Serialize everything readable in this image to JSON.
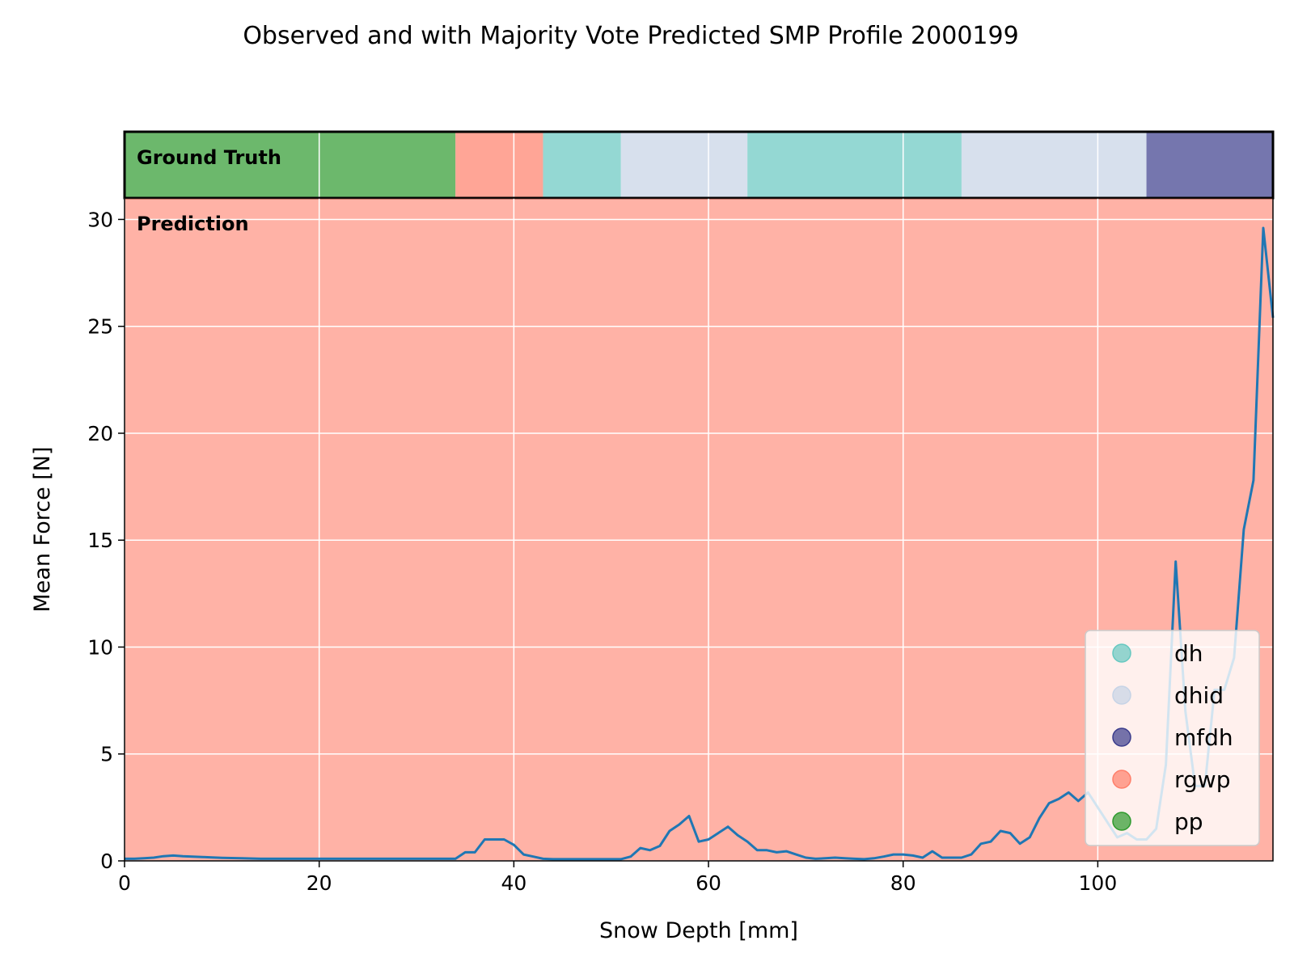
{
  "chart_data": {
    "type": "line",
    "title": "Observed and with Majority Vote Predicted SMP Profile 2000199",
    "xlabel": "Snow Depth [mm]",
    "ylabel": "Mean Force [N]",
    "xlim": [
      0,
      118
    ],
    "ylim": [
      0,
      31
    ],
    "x_ticks": [
      "0",
      "20",
      "40",
      "60",
      "80",
      "100"
    ],
    "y_ticks": [
      "0",
      "5",
      "10",
      "15",
      "20",
      "25",
      "30"
    ],
    "grid": true,
    "band_labels": {
      "ground_truth": "Ground Truth",
      "prediction": "Prediction"
    },
    "ground_truth_segments": [
      {
        "label": "pp",
        "start": 0,
        "end": 34
      },
      {
        "label": "rgwp",
        "start": 34,
        "end": 43
      },
      {
        "label": "dh",
        "start": 43,
        "end": 51
      },
      {
        "label": "dhid",
        "start": 51,
        "end": 64
      },
      {
        "label": "dh",
        "start": 64,
        "end": 86
      },
      {
        "label": "dhid",
        "start": 86,
        "end": 105
      },
      {
        "label": "mfdh",
        "start": 105,
        "end": 118
      }
    ],
    "prediction_segments": [
      {
        "label": "rgwp",
        "start": 0,
        "end": 118
      }
    ],
    "legend": {
      "position": "lower-right",
      "entries": [
        {
          "label": "dh",
          "color": "#66c8c0"
        },
        {
          "label": "dhid",
          "color": "#c6d3e6"
        },
        {
          "label": "mfdh",
          "color": "#3b3c8c"
        },
        {
          "label": "rgwp",
          "color": "#ff7f6a"
        },
        {
          "label": "pp",
          "color": "#2e9a2e"
        }
      ]
    },
    "series": [
      {
        "color": "#1f77b4",
        "x": [
          0,
          1,
          2,
          3,
          4,
          5,
          6,
          7,
          8,
          9,
          10,
          12,
          14,
          16,
          18,
          20,
          22,
          24,
          26,
          28,
          30,
          32,
          34,
          35,
          36,
          37,
          38,
          39,
          40,
          41,
          42,
          43,
          44,
          46,
          48,
          50,
          51,
          52,
          53,
          54,
          55,
          56,
          57,
          58,
          59,
          60,
          61,
          62,
          63,
          64,
          65,
          66,
          67,
          68,
          69,
          70,
          71,
          72,
          73,
          74,
          75,
          76,
          77,
          78,
          79,
          80,
          81,
          82,
          83,
          84,
          85,
          86,
          87,
          88,
          89,
          90,
          91,
          92,
          93,
          94,
          95,
          96,
          97,
          98,
          99,
          100,
          101,
          102,
          103,
          104,
          105,
          106,
          107,
          108,
          109,
          110,
          111,
          112,
          113,
          114,
          115,
          116,
          117,
          118
        ],
        "y": [
          0.1,
          0.1,
          0.12,
          0.15,
          0.22,
          0.25,
          0.22,
          0.2,
          0.18,
          0.16,
          0.14,
          0.12,
          0.1,
          0.1,
          0.1,
          0.1,
          0.1,
          0.1,
          0.1,
          0.1,
          0.1,
          0.1,
          0.1,
          0.4,
          0.4,
          1.0,
          1.0,
          1.0,
          0.75,
          0.3,
          0.2,
          0.1,
          0.08,
          0.08,
          0.08,
          0.08,
          0.08,
          0.2,
          0.6,
          0.5,
          0.7,
          1.4,
          1.7,
          2.1,
          0.9,
          1.0,
          1.3,
          1.6,
          1.2,
          0.9,
          0.5,
          0.5,
          0.4,
          0.45,
          0.3,
          0.15,
          0.1,
          0.12,
          0.15,
          0.12,
          0.1,
          0.08,
          0.12,
          0.2,
          0.3,
          0.3,
          0.25,
          0.15,
          0.45,
          0.15,
          0.15,
          0.15,
          0.3,
          0.8,
          0.9,
          1.4,
          1.3,
          0.8,
          1.1,
          2.0,
          2.7,
          2.9,
          3.2,
          2.8,
          3.2,
          2.5,
          1.8,
          1.1,
          1.3,
          1.0,
          1.0,
          1.5,
          4.5,
          14.0,
          7.0,
          3.5,
          3.5,
          8.0,
          8.0,
          9.5,
          15.5,
          17.8,
          29.6,
          25.4
        ]
      }
    ]
  }
}
